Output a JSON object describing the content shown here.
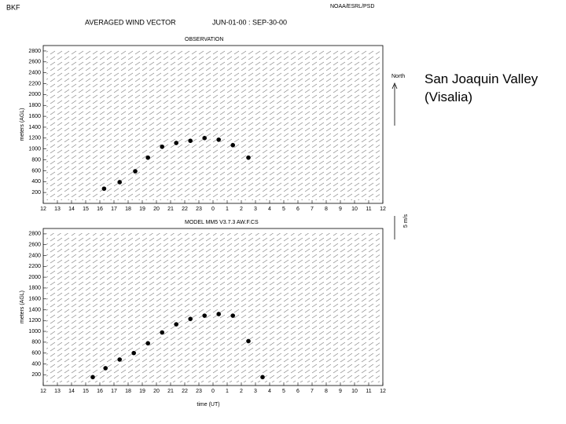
{
  "header": {
    "station": "BKF",
    "agency": "NOAA/ESRL/PSD",
    "title": "AVERAGED WIND VECTOR",
    "period": "JUN-01-00 : SEP-30-00"
  },
  "legend": {
    "north": "North",
    "scale": "5 m/s"
  },
  "caption": {
    "line1": "San Joaquin Valley",
    "line2": "(Visalia)"
  },
  "chart_data": [
    {
      "type": "scatter",
      "title": "OBSERVATION",
      "ylabel": "meters (AGL)",
      "x": [
        4.3,
        5.4,
        6.5,
        7.4,
        8.4,
        9.4,
        10.4,
        11.4,
        12.4,
        13.4,
        14.5
      ],
      "values": [
        270,
        390,
        590,
        840,
        1040,
        1110,
        1150,
        1200,
        1170,
        1070,
        840
      ],
      "color": "#000000",
      "xlim": [
        0,
        24
      ],
      "xticks": [
        {
          "value": 0,
          "label": "12"
        },
        {
          "value": 1,
          "label": "13"
        },
        {
          "value": 2,
          "label": "14"
        },
        {
          "value": 3,
          "label": "15"
        },
        {
          "value": 4,
          "label": "16"
        },
        {
          "value": 5,
          "label": "17"
        },
        {
          "value": 6,
          "label": "18"
        },
        {
          "value": 7,
          "label": "19"
        },
        {
          "value": 8,
          "label": "20"
        },
        {
          "value": 9,
          "label": "21"
        },
        {
          "value": 10,
          "label": "22"
        },
        {
          "value": 11,
          "label": "23"
        },
        {
          "value": 12,
          "label": "0"
        },
        {
          "value": 13,
          "label": "1"
        },
        {
          "value": 14,
          "label": "2"
        },
        {
          "value": 15,
          "label": "3"
        },
        {
          "value": 16,
          "label": "4"
        },
        {
          "value": 17,
          "label": "5"
        },
        {
          "value": 18,
          "label": "6"
        },
        {
          "value": 19,
          "label": "7"
        },
        {
          "value": 20,
          "label": "8"
        },
        {
          "value": 21,
          "label": "9"
        },
        {
          "value": 22,
          "label": "10"
        },
        {
          "value": 23,
          "label": "11"
        },
        {
          "value": 24,
          "label": "12"
        }
      ],
      "ylim": [
        0,
        2900
      ],
      "yticks": [
        200,
        400,
        600,
        800,
        1000,
        1200,
        1400,
        1600,
        1800,
        2000,
        2200,
        2400,
        2600,
        2800
      ]
    },
    {
      "type": "scatter",
      "title": "MODEL MM5 V3.7.3 AW.F.CS",
      "ylabel": "meters (AGL)",
      "xlabel": "time (UT)",
      "x": [
        3.5,
        4.4,
        5.4,
        6.4,
        7.4,
        8.4,
        9.4,
        10.4,
        11.4,
        12.4,
        13.4,
        14.5,
        15.5
      ],
      "values": [
        155,
        320,
        480,
        600,
        780,
        980,
        1130,
        1230,
        1290,
        1320,
        1290,
        820,
        155
      ],
      "color": "#000000",
      "xlim": [
        0,
        24
      ],
      "xticks": [
        {
          "value": 0,
          "label": "12"
        },
        {
          "value": 1,
          "label": "13"
        },
        {
          "value": 2,
          "label": "14"
        },
        {
          "value": 3,
          "label": "15"
        },
        {
          "value": 4,
          "label": "16"
        },
        {
          "value": 5,
          "label": "17"
        },
        {
          "value": 6,
          "label": "18"
        },
        {
          "value": 7,
          "label": "19"
        },
        {
          "value": 8,
          "label": "20"
        },
        {
          "value": 9,
          "label": "21"
        },
        {
          "value": 10,
          "label": "22"
        },
        {
          "value": 11,
          "label": "23"
        },
        {
          "value": 12,
          "label": "0"
        },
        {
          "value": 13,
          "label": "1"
        },
        {
          "value": 14,
          "label": "2"
        },
        {
          "value": 15,
          "label": "3"
        },
        {
          "value": 16,
          "label": "4"
        },
        {
          "value": 17,
          "label": "5"
        },
        {
          "value": 18,
          "label": "6"
        },
        {
          "value": 19,
          "label": "7"
        },
        {
          "value": 20,
          "label": "8"
        },
        {
          "value": 21,
          "label": "9"
        },
        {
          "value": 22,
          "label": "10"
        },
        {
          "value": 23,
          "label": "11"
        },
        {
          "value": 24,
          "label": "12"
        }
      ],
      "ylim": [
        0,
        2900
      ],
      "yticks": [
        200,
        400,
        600,
        800,
        1000,
        1200,
        1400,
        1600,
        1800,
        2000,
        2200,
        2400,
        2600,
        2800
      ]
    }
  ]
}
